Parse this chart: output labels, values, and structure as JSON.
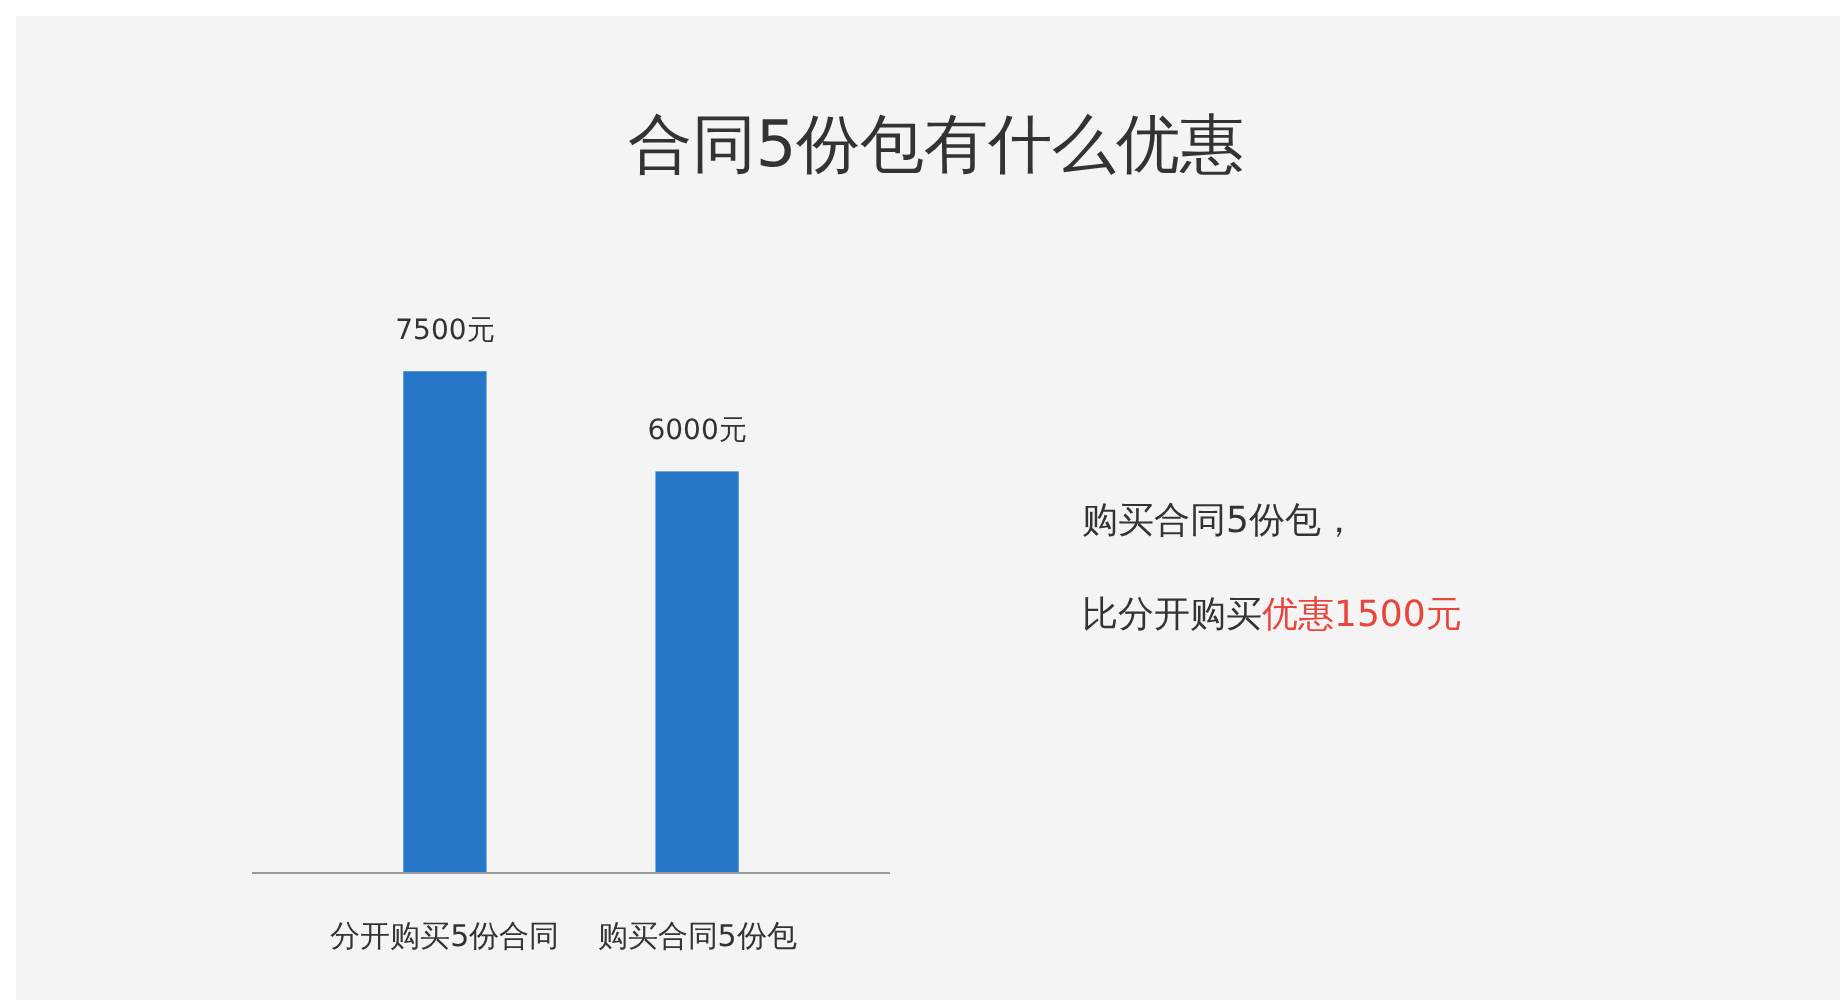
{
  "chart_data": {
    "type": "bar",
    "title": "合同5份包有什么优惠",
    "categories": [
      "分开购买5份合同",
      "购买合同5份包"
    ],
    "values": [
      7500,
      6000
    ],
    "value_labels": [
      "7500元",
      "6000元"
    ],
    "color": "#2777c9",
    "annotations": [
      "购买合同5份包，",
      "比分开购买",
      "优惠1500元"
    ]
  }
}
